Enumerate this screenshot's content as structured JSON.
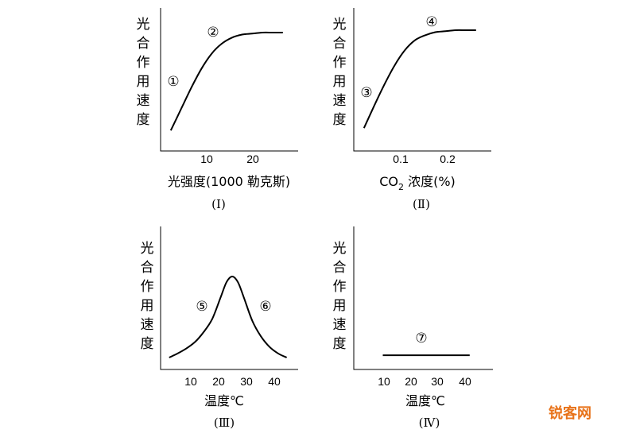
{
  "chart_data": [
    {
      "type": "line",
      "panel": "(Ⅰ)",
      "ylabel": "光合作用速度",
      "xlabel": "光强度(1000 勒克斯)",
      "x_ticks": [
        "10",
        "20"
      ],
      "xlim": [
        0,
        27
      ],
      "ylim": [
        0,
        10
      ],
      "series": [
        {
          "x": [
            2,
            4,
            6,
            8,
            10,
            12,
            14,
            16,
            18,
            20,
            22,
            24
          ],
          "y": [
            0.3,
            2.4,
            4.5,
            6.4,
            7.9,
            8.9,
            9.5,
            9.8,
            9.9,
            10,
            10,
            10
          ]
        }
      ],
      "annotations": [
        {
          "label": "①",
          "x": -0.8,
          "y": 5.2
        },
        {
          "label": "②",
          "x": 10.5,
          "y": 10.4
        }
      ]
    },
    {
      "type": "line",
      "panel": "(Ⅱ)",
      "ylabel": "光合作用速度",
      "xlabel_main": "CO",
      "xlabel_sub": "2",
      "xlabel_rest": " 浓度(%)",
      "x_ticks": [
        "0.1",
        "0.2"
      ],
      "xlim": [
        0,
        0.27
      ],
      "ylim": [
        0,
        10
      ],
      "series": [
        {
          "x": [
            0.02,
            0.04,
            0.06,
            0.08,
            0.1,
            0.12,
            0.14,
            0.16,
            0.18,
            0.2,
            0.22,
            0.24
          ],
          "y": [
            0.3,
            2.5,
            4.6,
            6.5,
            8.0,
            9.0,
            9.5,
            9.8,
            9.9,
            10,
            10,
            10
          ]
        }
      ],
      "annotations": [
        {
          "label": "③",
          "x": 0.015,
          "y": 4.0
        },
        {
          "label": "④",
          "x": 0.15,
          "y": 10.9
        }
      ]
    },
    {
      "type": "line",
      "panel": "(Ⅲ)",
      "ylabel": "光合作用速度",
      "xlabel": "温度℃",
      "x_ticks": [
        "10",
        "20",
        "30",
        "40"
      ],
      "xlim": [
        0,
        48
      ],
      "ylim": [
        0,
        10
      ],
      "series": [
        {
          "x": [
            3,
            6,
            9,
            12,
            15,
            18,
            21,
            23,
            25,
            27,
            29,
            32,
            35,
            38,
            41,
            44
          ],
          "y": [
            0.1,
            0.6,
            1.2,
            2.0,
            3.2,
            4.8,
            7.5,
            9.3,
            10,
            9.3,
            7.5,
            4.6,
            2.7,
            1.4,
            0.6,
            0.1
          ]
        }
      ],
      "annotations": [
        {
          "label": "⑤",
          "x": 14,
          "y": 5.2
        },
        {
          "label": "⑥",
          "x": 34.5,
          "y": 5.2
        }
      ]
    },
    {
      "type": "line",
      "panel": "(Ⅳ)",
      "ylabel": "光合作用速度",
      "xlabel": "温度℃",
      "x_ticks": [
        "10",
        "20",
        "30",
        "40"
      ],
      "xlim": [
        0,
        48
      ],
      "ylim": [
        0,
        10
      ],
      "series": [
        {
          "x": [
            10,
            40
          ],
          "y": [
            0.5,
            0.5
          ]
        }
      ],
      "annotations": [
        {
          "label": "⑦",
          "x": 25,
          "y": 1.6
        }
      ]
    }
  ],
  "watermark": "锐客网"
}
